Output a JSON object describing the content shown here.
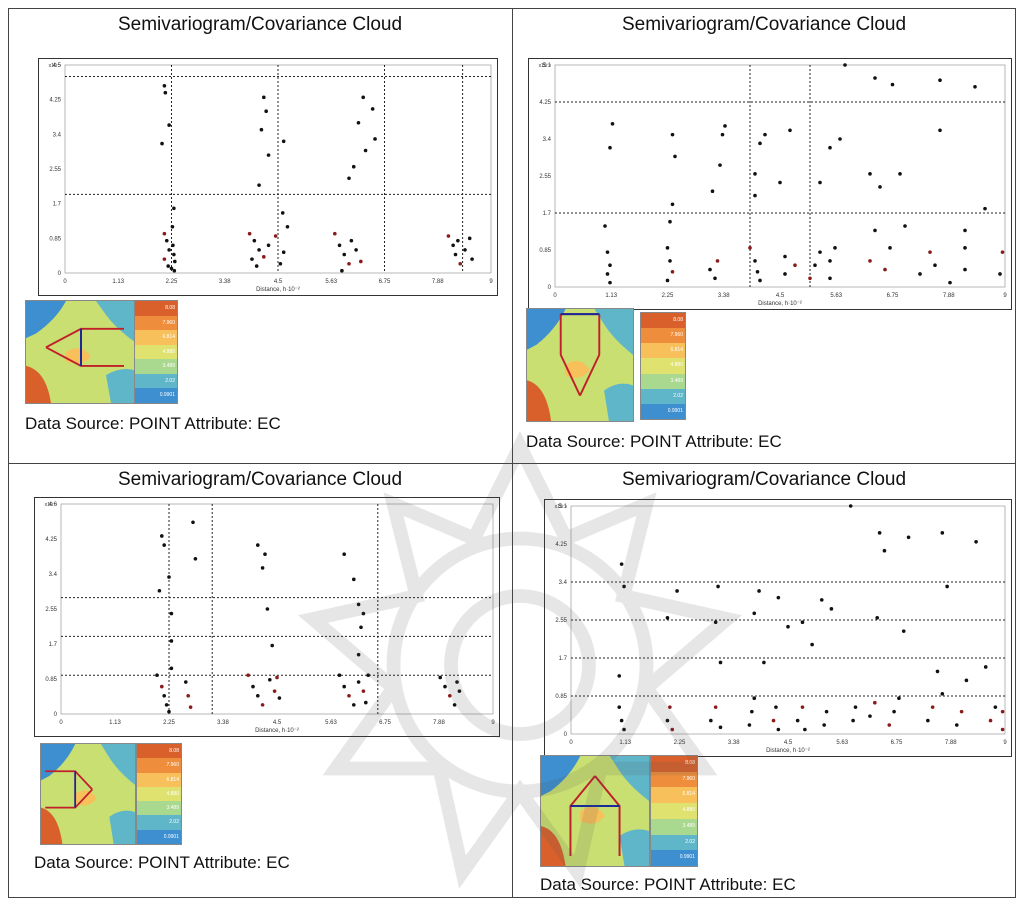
{
  "panel_title": "Semivariogram/Covariance Cloud",
  "data_source": "Data Source: POINT Attribute: EC",
  "xlabel": "Distance, h·10⁻²",
  "ylabel_exponent": "x10⁻¹",
  "legend_values": [
    "8.08",
    "7.960",
    "6.814",
    "4.880",
    "3.489",
    "2.02",
    "0.9901"
  ],
  "legend_colors": [
    "#d9602a",
    "#ee8e3c",
    "#f7c05a",
    "#dfe26e",
    "#a9d88f",
    "#5fb6c9",
    "#3d8fd0"
  ],
  "chart_data": [
    {
      "type": "scatter",
      "title": "Semivariogram/Covariance Cloud",
      "xlabel": "Distance, h·10⁻²",
      "x_ticks": [
        "1.13",
        "2.25",
        "3.38",
        "4.5",
        "5.63",
        "6.75",
        "7.88",
        "9"
      ],
      "y_ticks": [
        "0",
        "0.85",
        "1.7",
        "2.55",
        "3.4",
        "4.25",
        "4.5"
      ],
      "xlim": [
        0,
        9
      ],
      "ylim": [
        0,
        4.5
      ],
      "vgrid": [
        2.25,
        4.5,
        6.75,
        8.4
      ],
      "hgrid": [
        1.7,
        4.25
      ],
      "points": [
        [
          2.1,
          0.85
        ],
        [
          2.15,
          0.7
        ],
        [
          2.2,
          0.5
        ],
        [
          2.1,
          0.3
        ],
        [
          2.18,
          0.15
        ],
        [
          2.25,
          0.1
        ],
        [
          2.3,
          0.4
        ],
        [
          2.28,
          0.6
        ],
        [
          2.32,
          0.25
        ],
        [
          2.05,
          2.8
        ],
        [
          2.1,
          4.05
        ],
        [
          2.12,
          3.9
        ],
        [
          2.2,
          3.2
        ],
        [
          2.3,
          1.4
        ],
        [
          2.27,
          1.0
        ],
        [
          2.31,
          0.05
        ],
        [
          3.9,
          0.85
        ],
        [
          4.0,
          0.7
        ],
        [
          4.1,
          0.5
        ],
        [
          3.95,
          0.3
        ],
        [
          4.05,
          0.15
        ],
        [
          4.2,
          0.35
        ],
        [
          4.3,
          0.6
        ],
        [
          4.45,
          0.8
        ],
        [
          4.55,
          0.2
        ],
        [
          4.62,
          0.45
        ],
        [
          4.2,
          3.8
        ],
        [
          4.25,
          3.5
        ],
        [
          4.15,
          3.1
        ],
        [
          4.3,
          2.55
        ],
        [
          4.1,
          1.9
        ],
        [
          4.62,
          2.85
        ],
        [
          4.6,
          1.3
        ],
        [
          4.7,
          1.0
        ],
        [
          5.7,
          0.85
        ],
        [
          5.8,
          0.6
        ],
        [
          5.9,
          0.4
        ],
        [
          6.0,
          0.2
        ],
        [
          5.85,
          0.05
        ],
        [
          6.05,
          0.7
        ],
        [
          6.15,
          0.5
        ],
        [
          6.25,
          0.25
        ],
        [
          6.3,
          3.8
        ],
        [
          6.5,
          3.55
        ],
        [
          6.2,
          3.25
        ],
        [
          6.55,
          2.9
        ],
        [
          6.35,
          2.65
        ],
        [
          6.1,
          2.3
        ],
        [
          6.0,
          2.05
        ],
        [
          8.1,
          0.8
        ],
        [
          8.2,
          0.6
        ],
        [
          8.25,
          0.4
        ],
        [
          8.35,
          0.2
        ],
        [
          8.3,
          0.7
        ],
        [
          8.45,
          0.5
        ],
        [
          8.6,
          0.3
        ],
        [
          8.55,
          0.75
        ]
      ]
    },
    {
      "type": "scatter",
      "title": "Semivariogram/Covariance Cloud",
      "xlabel": "Distance, h·10⁻²",
      "x_ticks": [
        "1.13",
        "2.25",
        "3.38",
        "4.5",
        "5.63",
        "6.75",
        "7.88",
        "9"
      ],
      "y_ticks": [
        "0",
        "0.85",
        "1.7",
        "2.55",
        "3.4",
        "4.25",
        "5.1"
      ],
      "xlim": [
        0,
        9
      ],
      "ylim": [
        0,
        5.1
      ],
      "vgrid": [
        3.9,
        5.1
      ],
      "hgrid": [
        1.7,
        4.25
      ],
      "points": [
        [
          1.0,
          1.4
        ],
        [
          1.05,
          0.8
        ],
        [
          1.1,
          0.5
        ],
        [
          1.05,
          0.3
        ],
        [
          1.1,
          0.1
        ],
        [
          1.1,
          3.2
        ],
        [
          1.15,
          3.75
        ],
        [
          2.25,
          0.9
        ],
        [
          2.3,
          0.6
        ],
        [
          2.35,
          0.35
        ],
        [
          2.25,
          0.15
        ],
        [
          2.3,
          1.5
        ],
        [
          2.35,
          1.9
        ],
        [
          2.4,
          3.0
        ],
        [
          2.35,
          3.5
        ],
        [
          3.1,
          0.4
        ],
        [
          3.2,
          0.2
        ],
        [
          3.25,
          0.6
        ],
        [
          3.15,
          2.2
        ],
        [
          3.3,
          2.8
        ],
        [
          3.35,
          3.5
        ],
        [
          3.4,
          3.7
        ],
        [
          3.9,
          0.9
        ],
        [
          4.0,
          0.6
        ],
        [
          4.05,
          0.35
        ],
        [
          4.1,
          0.15
        ],
        [
          4.0,
          2.1
        ],
        [
          4.0,
          2.6
        ],
        [
          4.1,
          3.3
        ],
        [
          4.2,
          3.5
        ],
        [
          4.6,
          0.3
        ],
        [
          4.6,
          0.7
        ],
        [
          4.5,
          2.4
        ],
        [
          4.7,
          3.6
        ],
        [
          4.8,
          0.5
        ],
        [
          5.1,
          0.2
        ],
        [
          5.2,
          0.5
        ],
        [
          5.3,
          0.8
        ],
        [
          5.5,
          0.2
        ],
        [
          5.5,
          0.6
        ],
        [
          5.6,
          0.9
        ],
        [
          5.3,
          2.4
        ],
        [
          5.5,
          3.2
        ],
        [
          5.7,
          3.4
        ],
        [
          5.8,
          5.1
        ],
        [
          6.3,
          0.6
        ],
        [
          6.4,
          1.3
        ],
        [
          6.3,
          2.6
        ],
        [
          6.4,
          4.8
        ],
        [
          6.5,
          2.3
        ],
        [
          6.6,
          0.4
        ],
        [
          6.7,
          0.9
        ],
        [
          6.75,
          4.65
        ],
        [
          6.9,
          2.6
        ],
        [
          7.0,
          1.4
        ],
        [
          7.3,
          0.3
        ],
        [
          7.5,
          0.8
        ],
        [
          7.6,
          0.5
        ],
        [
          7.7,
          4.75
        ],
        [
          7.7,
          3.6
        ],
        [
          7.9,
          0.1
        ],
        [
          8.2,
          0.4
        ],
        [
          8.2,
          0.9
        ],
        [
          8.2,
          1.3
        ],
        [
          8.4,
          4.6
        ],
        [
          8.6,
          1.8
        ],
        [
          8.9,
          0.3
        ],
        [
          8.95,
          0.8
        ]
      ]
    },
    {
      "type": "scatter",
      "title": "Semivariogram/Covariance Cloud",
      "xlabel": "Distance, h·10⁻²",
      "x_ticks": [
        "1.13",
        "2.25",
        "3.38",
        "4.5",
        "5.63",
        "6.75",
        "7.88",
        "9"
      ],
      "y_ticks": [
        "0",
        "0.85",
        "1.7",
        "2.55",
        "3.4",
        "4.25",
        "4.6"
      ],
      "xlim": [
        0,
        9
      ],
      "ylim": [
        0,
        4.6
      ],
      "vgrid": [
        2.25,
        3.15,
        6.6
      ],
      "hgrid": [
        0.85,
        1.7,
        2.55
      ],
      "points": [
        [
          2.0,
          0.85
        ],
        [
          2.1,
          0.6
        ],
        [
          2.15,
          0.4
        ],
        [
          2.2,
          0.2
        ],
        [
          2.25,
          0.05
        ],
        [
          2.05,
          2.7
        ],
        [
          2.1,
          3.9
        ],
        [
          2.15,
          3.7
        ],
        [
          2.25,
          3.0
        ],
        [
          2.3,
          2.2
        ],
        [
          2.3,
          1.6
        ],
        [
          2.3,
          1.0
        ],
        [
          2.6,
          0.7
        ],
        [
          2.65,
          0.4
        ],
        [
          2.7,
          0.15
        ],
        [
          2.75,
          4.2
        ],
        [
          2.8,
          3.4
        ],
        [
          3.9,
          0.85
        ],
        [
          4.0,
          0.6
        ],
        [
          4.1,
          0.4
        ],
        [
          4.2,
          0.2
        ],
        [
          4.35,
          0.75
        ],
        [
          4.45,
          0.5
        ],
        [
          4.1,
          3.7
        ],
        [
          4.2,
          3.2
        ],
        [
          4.25,
          3.5
        ],
        [
          4.3,
          2.3
        ],
        [
          4.4,
          1.5
        ],
        [
          4.5,
          0.8
        ],
        [
          4.55,
          0.35
        ],
        [
          5.8,
          0.85
        ],
        [
          5.9,
          0.6
        ],
        [
          6.0,
          0.4
        ],
        [
          6.1,
          0.2
        ],
        [
          6.2,
          0.7
        ],
        [
          6.3,
          0.5
        ],
        [
          6.35,
          0.25
        ],
        [
          6.4,
          0.85
        ],
        [
          5.9,
          3.5
        ],
        [
          6.1,
          2.95
        ],
        [
          6.2,
          2.4
        ],
        [
          6.3,
          2.2
        ],
        [
          6.25,
          1.9
        ],
        [
          6.2,
          1.3
        ],
        [
          7.9,
          0.8
        ],
        [
          8.0,
          0.6
        ],
        [
          8.1,
          0.4
        ],
        [
          8.2,
          0.2
        ],
        [
          8.25,
          0.7
        ],
        [
          8.3,
          0.5
        ]
      ]
    },
    {
      "type": "scatter",
      "title": "Semivariogram/Covariance Cloud",
      "xlabel": "Distance, h·10⁻²",
      "x_ticks": [
        "1.13",
        "2.25",
        "3.38",
        "4.5",
        "5.63",
        "6.75",
        "7.88",
        "9"
      ],
      "y_ticks": [
        "0",
        "0.85",
        "1.7",
        "2.55",
        "3.4",
        "4.25",
        "5.1"
      ],
      "xlim": [
        0,
        9
      ],
      "ylim": [
        0,
        5.1
      ],
      "vgrid": [],
      "hgrid": [
        0.85,
        1.7,
        2.55,
        3.4
      ],
      "points": [
        [
          1.0,
          0.6
        ],
        [
          1.05,
          0.3
        ],
        [
          1.1,
          0.1
        ],
        [
          1.0,
          1.3
        ],
        [
          1.05,
          3.8
        ],
        [
          1.1,
          3.3
        ],
        [
          2.0,
          0.3
        ],
        [
          2.05,
          0.6
        ],
        [
          2.1,
          0.1
        ],
        [
          2.0,
          2.6
        ],
        [
          2.2,
          3.2
        ],
        [
          2.9,
          0.3
        ],
        [
          3.0,
          0.6
        ],
        [
          3.1,
          0.15
        ],
        [
          3.0,
          2.5
        ],
        [
          3.05,
          3.3
        ],
        [
          3.1,
          1.6
        ],
        [
          3.7,
          0.2
        ],
        [
          3.75,
          0.5
        ],
        [
          3.8,
          0.8
        ],
        [
          3.8,
          2.7
        ],
        [
          3.9,
          3.2
        ],
        [
          4.0,
          1.6
        ],
        [
          4.2,
          0.3
        ],
        [
          4.25,
          0.6
        ],
        [
          4.3,
          0.1
        ],
        [
          4.3,
          3.05
        ],
        [
          4.5,
          2.4
        ],
        [
          4.7,
          0.3
        ],
        [
          4.8,
          0.6
        ],
        [
          4.85,
          0.1
        ],
        [
          4.8,
          2.5
        ],
        [
          5.0,
          2.0
        ],
        [
          5.2,
          3.0
        ],
        [
          5.25,
          0.2
        ],
        [
          5.3,
          0.5
        ],
        [
          5.4,
          2.8
        ],
        [
          5.8,
          5.1
        ],
        [
          5.85,
          0.3
        ],
        [
          5.9,
          0.6
        ],
        [
          6.2,
          0.4
        ],
        [
          6.3,
          0.7
        ],
        [
          6.35,
          2.6
        ],
        [
          6.4,
          4.5
        ],
        [
          6.5,
          4.1
        ],
        [
          6.6,
          0.2
        ],
        [
          6.7,
          0.5
        ],
        [
          6.8,
          0.8
        ],
        [
          6.9,
          2.3
        ],
        [
          7.0,
          4.4
        ],
        [
          7.4,
          0.3
        ],
        [
          7.5,
          0.6
        ],
        [
          7.6,
          1.4
        ],
        [
          7.7,
          0.9
        ],
        [
          7.7,
          4.5
        ],
        [
          7.8,
          3.3
        ],
        [
          8.0,
          0.2
        ],
        [
          8.1,
          0.5
        ],
        [
          8.2,
          1.2
        ],
        [
          8.4,
          4.3
        ],
        [
          8.6,
          1.5
        ],
        [
          8.7,
          0.3
        ],
        [
          8.8,
          0.6
        ],
        [
          8.95,
          0.5
        ],
        [
          8.95,
          0.1
        ]
      ]
    }
  ]
}
